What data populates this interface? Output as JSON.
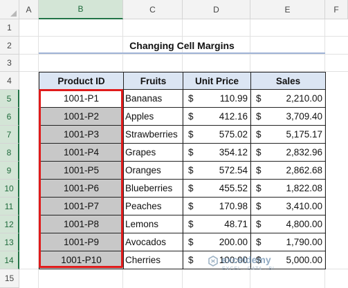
{
  "columns": [
    "A",
    "B",
    "C",
    "D",
    "E",
    "F"
  ],
  "rows": [
    "1",
    "2",
    "3",
    "4",
    "5",
    "6",
    "7",
    "8",
    "9",
    "10",
    "11",
    "12",
    "13",
    "14",
    "15"
  ],
  "title": "Changing Cell Margins",
  "table": {
    "headers": [
      "Product ID",
      "Fruits",
      "Unit Price",
      "Sales"
    ],
    "currency": "$",
    "rows": [
      {
        "id": "1001-P1",
        "fruit": "Bananas",
        "price": "110.99",
        "sales": "2,210.00"
      },
      {
        "id": "1001-P2",
        "fruit": "Apples",
        "price": "412.16",
        "sales": "3,709.40"
      },
      {
        "id": "1001-P3",
        "fruit": "Strawberries",
        "price": "575.02",
        "sales": "5,175.17"
      },
      {
        "id": "1001-P4",
        "fruit": "Grapes",
        "price": "354.12",
        "sales": "2,832.96"
      },
      {
        "id": "1001-P5",
        "fruit": "Oranges",
        "price": "572.54",
        "sales": "2,862.68"
      },
      {
        "id": "1001-P6",
        "fruit": "Blueberries",
        "price": "455.52",
        "sales": "1,822.08"
      },
      {
        "id": "1001-P7",
        "fruit": "Peaches",
        "price": "170.98",
        "sales": "3,410.00"
      },
      {
        "id": "1001-P8",
        "fruit": "Lemons",
        "price": "48.71",
        "sales": "4,800.00"
      },
      {
        "id": "1001-P9",
        "fruit": "Avocados",
        "price": "200.00",
        "sales": "1,790.00"
      },
      {
        "id": "1001-P10",
        "fruit": "Cherries",
        "price": "100.00",
        "sales": "5,000.00"
      }
    ]
  },
  "selection": {
    "column": "B",
    "rows": [
      "5",
      "6",
      "7",
      "8",
      "9",
      "10",
      "11",
      "12",
      "13",
      "14"
    ],
    "color": "#e01b1b"
  },
  "watermark": {
    "name": "exceldemy",
    "tagline": "EXCEL · DATA · BI",
    "icon": "exceldemy-logo-icon"
  }
}
